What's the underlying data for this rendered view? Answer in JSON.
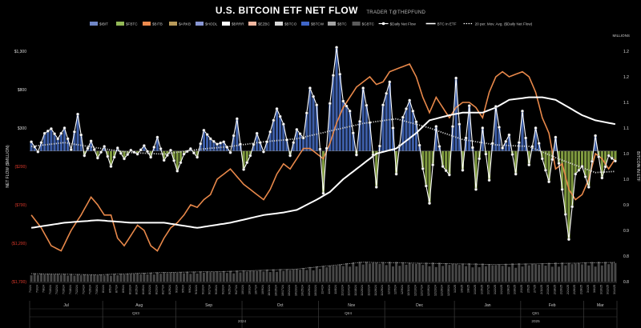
{
  "header": {
    "title": "U.S. BITCOIN ETF NET FLOW",
    "credit": "TRADER T@THEPFUND"
  },
  "chart_data": {
    "type": "bar",
    "title": "U.S. BITCOIN ETF NET FLOW",
    "ylabel_left": "NET FLOW ($MILLION)",
    "ylabel_right": "BITCOIN IN ETF",
    "right_unit": "MILLIONS",
    "left_ticks": [
      "$1,300",
      "$800",
      "$300",
      "($200)",
      "($700)",
      "($1,200)",
      "($1,700)"
    ],
    "left_ticks_negative": [
      false,
      false,
      false,
      true,
      true,
      true,
      true
    ],
    "ylim_left": [
      -1700,
      1300
    ],
    "right_ticks": [
      "1.2",
      "1.2",
      "1.1",
      "1.1",
      "1.0",
      "1.0",
      "0.9",
      "0.9",
      "0.8",
      "0.8"
    ],
    "ylim_right": [
      0.8,
      1.25
    ],
    "months": [
      "Jul",
      "Aug",
      "Sep",
      "Oct",
      "Nov",
      "Dec",
      "Jan",
      "Feb",
      "Mar"
    ],
    "quarters": [
      "Qtr3",
      "Qtr4",
      "Qtr1"
    ],
    "years": [
      "2024",
      "2025"
    ],
    "legend": [
      {
        "name": "$IBIT",
        "color": "#6f86c6",
        "kind": "bar"
      },
      {
        "name": "$FBTC",
        "color": "#93b957",
        "kind": "bar"
      },
      {
        "name": "$BITB",
        "color": "#ef8b4e",
        "kind": "bar"
      },
      {
        "name": "$ARKB",
        "color": "#b89a5a",
        "kind": "bar"
      },
      {
        "name": "$HODL",
        "color": "#8896d4",
        "kind": "bar"
      },
      {
        "name": "$BRRR",
        "color": "#ffffff",
        "kind": "bar"
      },
      {
        "name": "$EZBC",
        "color": "#f2b7a0",
        "kind": "bar"
      },
      {
        "name": "$BTCO",
        "color": "#d8d8d8",
        "kind": "bar"
      },
      {
        "name": "$BTCW",
        "color": "#3f66c8",
        "kind": "bar"
      },
      {
        "name": "$BTC",
        "color": "#a3a3a3",
        "kind": "bar"
      },
      {
        "name": "$GBTC",
        "color": "#5a5a5a",
        "kind": "bar"
      },
      {
        "name": "$Daily Net Flow",
        "color": "#ffffff",
        "kind": "line-dot"
      },
      {
        "name": "BTC in ETF",
        "color": "#ffffff",
        "kind": "line"
      },
      {
        "name": "20 per. Mov. Avg. ($Daily Net Flow)",
        "color": "#ffffff",
        "kind": "dotted"
      }
    ],
    "series_colors": {
      "positive_bar": "#3d5ea8",
      "negative_bar": "#7f9a3f",
      "btc_price": "#e8884a",
      "net_flow": "#ffffff",
      "btc_in_etf": "#ffffff",
      "moving_avg": "#cfcfcf",
      "volume": "#5a5a5a"
    },
    "x": [
      "7/1/24",
      "7/2/24",
      "7/3/24",
      "7/5/24",
      "7/8/24",
      "7/9/24",
      "7/10/24",
      "7/11/24",
      "7/12/24",
      "7/15/24",
      "7/16/24",
      "7/17/24",
      "7/18/24",
      "7/19/24",
      "7/22/24",
      "7/23/24",
      "7/24/24",
      "7/25/24",
      "7/26/24",
      "7/29/24",
      "7/30/24",
      "7/31/24",
      "8/1/24",
      "8/2/24",
      "8/5/24",
      "8/6/24",
      "8/7/24",
      "8/8/24",
      "8/9/24",
      "8/12/24",
      "8/13/24",
      "8/14/24",
      "8/15/24",
      "8/16/24",
      "8/19/24",
      "8/20/24",
      "8/21/24",
      "8/22/24",
      "8/23/24",
      "8/26/24",
      "8/27/24",
      "8/28/24",
      "8/29/24",
      "8/30/24",
      "9/3/24",
      "9/4/24",
      "9/5/24",
      "9/6/24",
      "9/9/24",
      "9/10/24",
      "9/11/24",
      "9/12/24",
      "9/13/24",
      "9/16/24",
      "9/17/24",
      "9/18/24",
      "9/19/24",
      "9/20/24",
      "9/23/24",
      "9/24/24",
      "9/25/24",
      "9/26/24",
      "9/27/24",
      "9/30/24",
      "10/1/24",
      "10/2/24",
      "10/3/24",
      "10/4/24",
      "10/7/24",
      "10/8/24",
      "10/9/24",
      "10/10/24",
      "10/11/24",
      "10/14/24",
      "10/15/24",
      "10/16/24",
      "10/17/24",
      "10/18/24",
      "10/21/24",
      "10/22/24",
      "10/23/24",
      "10/24/24",
      "10/25/24",
      "10/28/24",
      "10/29/24",
      "10/30/24",
      "10/31/24",
      "11/1/24",
      "11/4/24",
      "11/5/24",
      "11/6/24",
      "11/7/24",
      "11/8/24",
      "11/11/24",
      "11/12/24",
      "11/13/24",
      "11/14/24",
      "11/15/24",
      "11/18/24",
      "11/19/24",
      "11/20/24",
      "11/21/24",
      "11/22/24",
      "11/25/24",
      "11/26/24",
      "11/27/24",
      "11/29/24",
      "12/2/24",
      "12/3/24",
      "12/4/24",
      "12/5/24",
      "12/6/24",
      "12/9/24",
      "12/10/24",
      "12/11/24",
      "12/12/24",
      "12/13/24",
      "12/16/24",
      "12/17/24",
      "12/18/24",
      "12/19/24",
      "12/20/24",
      "12/23/24",
      "12/24/24",
      "12/26/24",
      "12/27/24",
      "12/30/24",
      "12/31/24",
      "1/2/25",
      "1/3/25",
      "1/6/25",
      "1/7/25",
      "1/8/25",
      "1/10/25",
      "1/13/25",
      "1/14/25",
      "1/15/25",
      "1/16/25",
      "1/17/25",
      "1/21/25",
      "1/22/25",
      "1/23/25",
      "1/24/25",
      "1/27/25",
      "1/28/25",
      "1/29/25",
      "1/30/25",
      "1/31/25",
      "2/3/25",
      "2/4/25",
      "2/5/25",
      "2/6/25",
      "2/7/25",
      "2/10/25",
      "2/11/25",
      "2/12/25",
      "2/13/25",
      "2/14/25",
      "2/18/25",
      "2/19/25",
      "2/20/25",
      "2/21/25",
      "2/24/25",
      "2/25/25",
      "2/26/25",
      "2/27/25",
      "2/28/25",
      "3/3/25",
      "3/4/25",
      "3/5/25",
      "3/6/25",
      "3/7/25",
      "3/10/25",
      "3/11/25",
      "3/12/25",
      "3/13/25",
      "3/14/25"
    ],
    "flow_anchors": [
      [
        0,
        120
      ],
      [
        2,
        -10
      ],
      [
        4,
        230
      ],
      [
        6,
        290
      ],
      [
        8,
        160
      ],
      [
        10,
        300
      ],
      [
        12,
        20
      ],
      [
        14,
        480
      ],
      [
        16,
        -60
      ],
      [
        18,
        130
      ],
      [
        20,
        -90
      ],
      [
        22,
        60
      ],
      [
        24,
        -200
      ],
      [
        26,
        40
      ],
      [
        28,
        -100
      ],
      [
        30,
        10
      ],
      [
        32,
        -40
      ],
      [
        34,
        70
      ],
      [
        36,
        -80
      ],
      [
        38,
        180
      ],
      [
        40,
        -120
      ],
      [
        42,
        10
      ],
      [
        44,
        -260
      ],
      [
        46,
        -40
      ],
      [
        48,
        30
      ],
      [
        50,
        -80
      ],
      [
        52,
        270
      ],
      [
        54,
        160
      ],
      [
        56,
        90
      ],
      [
        58,
        120
      ],
      [
        60,
        -20
      ],
      [
        62,
        420
      ],
      [
        64,
        -240
      ],
      [
        66,
        -60
      ],
      [
        68,
        230
      ],
      [
        70,
        -10
      ],
      [
        72,
        250
      ],
      [
        74,
        550
      ],
      [
        76,
        350
      ],
      [
        78,
        -60
      ],
      [
        80,
        280
      ],
      [
        82,
        170
      ],
      [
        84,
        820
      ],
      [
        86,
        600
      ],
      [
        88,
        -550
      ],
      [
        90,
        620
      ],
      [
        92,
        1350
      ],
      [
        94,
        650
      ],
      [
        96,
        520
      ],
      [
        98,
        -50
      ],
      [
        100,
        820
      ],
      [
        102,
        370
      ],
      [
        104,
        -470
      ],
      [
        106,
        600
      ],
      [
        108,
        900
      ],
      [
        110,
        -300
      ],
      [
        112,
        440
      ],
      [
        114,
        660
      ],
      [
        116,
        380
      ],
      [
        118,
        -230
      ],
      [
        120,
        -680
      ],
      [
        122,
        320
      ],
      [
        124,
        -200
      ],
      [
        126,
        -310
      ],
      [
        128,
        950
      ],
      [
        130,
        -250
      ],
      [
        132,
        590
      ],
      [
        134,
        -500
      ],
      [
        136,
        300
      ],
      [
        138,
        -380
      ],
      [
        140,
        580
      ],
      [
        142,
        40
      ],
      [
        144,
        210
      ],
      [
        146,
        -300
      ],
      [
        148,
        520
      ],
      [
        150,
        -180
      ],
      [
        152,
        300
      ],
      [
        154,
        -100
      ],
      [
        156,
        -400
      ],
      [
        158,
        180
      ],
      [
        160,
        -500
      ],
      [
        162,
        -1150
      ],
      [
        164,
        -300
      ],
      [
        166,
        -200
      ],
      [
        168,
        -470
      ],
      [
        170,
        200
      ],
      [
        172,
        -350
      ],
      [
        174,
        -60
      ],
      [
        176,
        -130
      ],
      [
        178,
        40
      ]
    ],
    "btc_price_anchors": [
      [
        0,
        0.93
      ],
      [
        3,
        0.905
      ],
      [
        6,
        0.87
      ],
      [
        9,
        0.86
      ],
      [
        12,
        0.9
      ],
      [
        15,
        0.93
      ],
      [
        18,
        0.965
      ],
      [
        20,
        0.95
      ],
      [
        22,
        0.93
      ],
      [
        24,
        0.93
      ],
      [
        26,
        0.885
      ],
      [
        28,
        0.87
      ],
      [
        30,
        0.89
      ],
      [
        32,
        0.91
      ],
      [
        34,
        0.9
      ],
      [
        36,
        0.87
      ],
      [
        38,
        0.86
      ],
      [
        40,
        0.885
      ],
      [
        42,
        0.905
      ],
      [
        44,
        0.915
      ],
      [
        46,
        0.93
      ],
      [
        48,
        0.95
      ],
      [
        50,
        0.945
      ],
      [
        52,
        0.96
      ],
      [
        54,
        0.97
      ],
      [
        56,
        1.0
      ],
      [
        58,
        1.01
      ],
      [
        60,
        1.02
      ],
      [
        62,
        1.005
      ],
      [
        64,
        0.99
      ],
      [
        66,
        0.98
      ],
      [
        68,
        0.97
      ],
      [
        70,
        0.96
      ],
      [
        72,
        0.98
      ],
      [
        74,
        1.01
      ],
      [
        76,
        1.03
      ],
      [
        78,
        1.02
      ],
      [
        80,
        1.04
      ],
      [
        82,
        1.06
      ],
      [
        84,
        1.06
      ],
      [
        86,
        1.05
      ],
      [
        88,
        1.04
      ],
      [
        90,
        1.07
      ],
      [
        92,
        1.11
      ],
      [
        94,
        1.14
      ],
      [
        96,
        1.16
      ],
      [
        98,
        1.18
      ],
      [
        100,
        1.19
      ],
      [
        102,
        1.2
      ],
      [
        104,
        1.185
      ],
      [
        106,
        1.19
      ],
      [
        108,
        1.21
      ],
      [
        110,
        1.215
      ],
      [
        112,
        1.22
      ],
      [
        114,
        1.225
      ],
      [
        116,
        1.2
      ],
      [
        118,
        1.16
      ],
      [
        120,
        1.13
      ],
      [
        122,
        1.16
      ],
      [
        124,
        1.14
      ],
      [
        126,
        1.12
      ],
      [
        128,
        1.14
      ],
      [
        130,
        1.15
      ],
      [
        132,
        1.15
      ],
      [
        134,
        1.14
      ],
      [
        136,
        1.12
      ],
      [
        138,
        1.17
      ],
      [
        140,
        1.2
      ],
      [
        142,
        1.21
      ],
      [
        144,
        1.2
      ],
      [
        146,
        1.205
      ],
      [
        148,
        1.21
      ],
      [
        150,
        1.2
      ],
      [
        152,
        1.17
      ],
      [
        154,
        1.12
      ],
      [
        156,
        1.09
      ],
      [
        158,
        1.02
      ],
      [
        160,
        1.03
      ],
      [
        162,
        0.98
      ],
      [
        164,
        0.96
      ],
      [
        166,
        0.97
      ],
      [
        168,
        1.0
      ],
      [
        170,
        1.05
      ],
      [
        172,
        1.04
      ],
      [
        174,
        1.02
      ],
      [
        176,
        1.04
      ],
      [
        178,
        1.03
      ]
    ],
    "btc_in_etf_anchors": [
      [
        0,
        0.905
      ],
      [
        10,
        0.915
      ],
      [
        20,
        0.92
      ],
      [
        30,
        0.915
      ],
      [
        40,
        0.915
      ],
      [
        50,
        0.905
      ],
      [
        60,
        0.915
      ],
      [
        70,
        0.93
      ],
      [
        76,
        0.935
      ],
      [
        80,
        0.94
      ],
      [
        86,
        0.96
      ],
      [
        90,
        0.975
      ],
      [
        94,
        1.0
      ],
      [
        100,
        1.03
      ],
      [
        104,
        1.05
      ],
      [
        110,
        1.06
      ],
      [
        116,
        1.09
      ],
      [
        120,
        1.115
      ],
      [
        126,
        1.125
      ],
      [
        130,
        1.13
      ],
      [
        136,
        1.13
      ],
      [
        140,
        1.14
      ],
      [
        144,
        1.155
      ],
      [
        150,
        1.16
      ],
      [
        154,
        1.16
      ],
      [
        158,
        1.155
      ],
      [
        162,
        1.14
      ],
      [
        166,
        1.125
      ],
      [
        170,
        1.115
      ],
      [
        174,
        1.11
      ],
      [
        178,
        1.105
      ]
    ],
    "moving_avg_anchors": [
      [
        0,
        60
      ],
      [
        10,
        110
      ],
      [
        20,
        40
      ],
      [
        30,
        -20
      ],
      [
        40,
        -40
      ],
      [
        50,
        20
      ],
      [
        60,
        60
      ],
      [
        70,
        120
      ],
      [
        80,
        160
      ],
      [
        90,
        260
      ],
      [
        100,
        360
      ],
      [
        110,
        420
      ],
      [
        120,
        300
      ],
      [
        130,
        150
      ],
      [
        140,
        80
      ],
      [
        150,
        60
      ],
      [
        160,
        -120
      ],
      [
        170,
        -280
      ],
      [
        178,
        -260
      ]
    ],
    "volume_anchors": [
      [
        0,
        0.35
      ],
      [
        20,
        0.3
      ],
      [
        40,
        0.4
      ],
      [
        60,
        0.45
      ],
      [
        80,
        0.55
      ],
      [
        100,
        0.85
      ],
      [
        120,
        0.8
      ],
      [
        140,
        0.75
      ],
      [
        160,
        0.8
      ],
      [
        178,
        0.85
      ]
    ]
  }
}
